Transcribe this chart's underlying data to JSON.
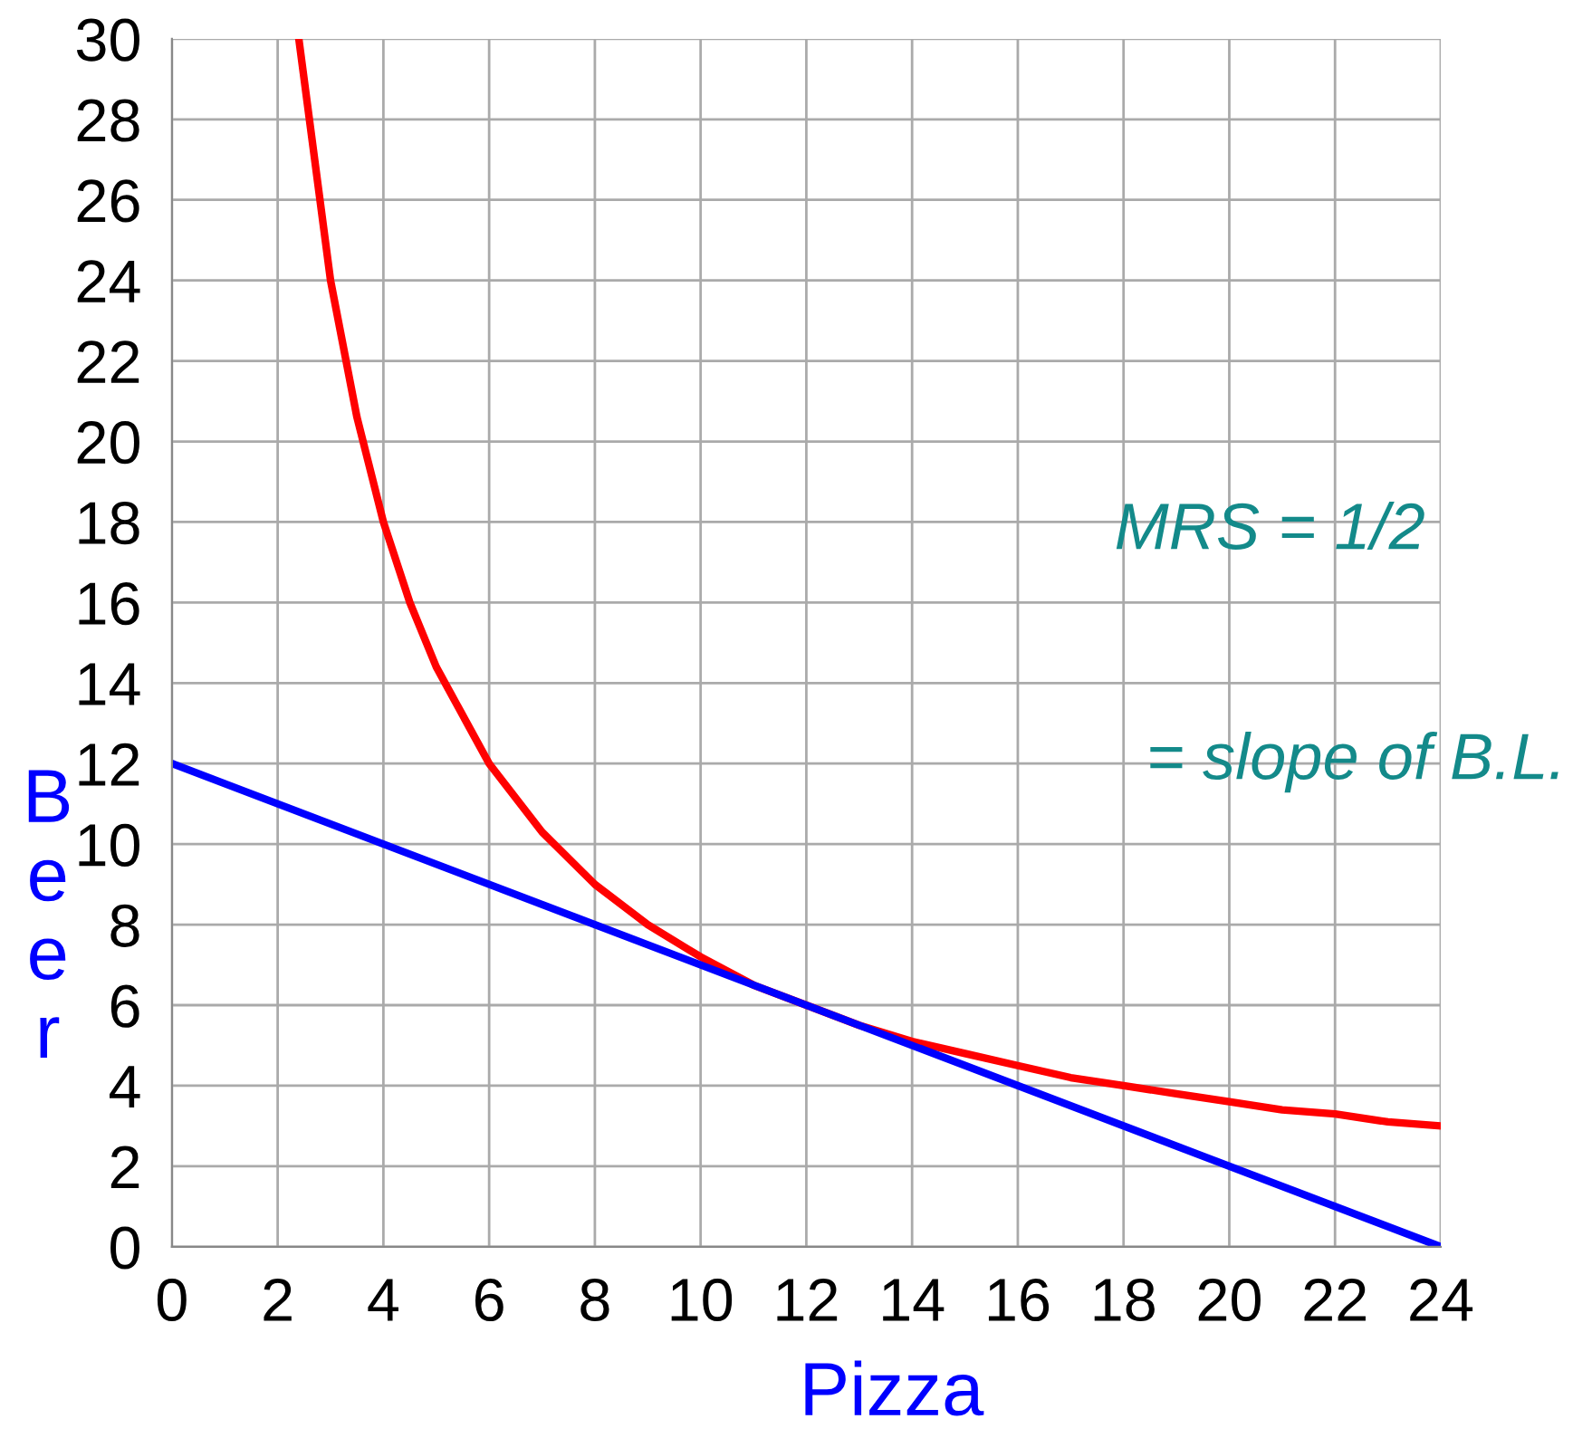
{
  "chart_data": {
    "type": "line",
    "xlabel": "Pizza",
    "ylabel": "Beer",
    "series": [
      {
        "color": "#ff0000",
        "x": [
          2.4,
          3,
          3.5,
          4,
          4.5,
          5,
          6,
          7,
          8,
          9,
          10,
          11,
          12,
          13,
          14,
          15,
          16,
          17,
          18,
          19,
          20,
          21,
          22,
          23,
          24
        ],
        "values": [
          30,
          24,
          20.6,
          18,
          16,
          14.4,
          12,
          10.3,
          9,
          8,
          7.2,
          6.5,
          6,
          5.5,
          5.1,
          4.8,
          4.5,
          4.2,
          4,
          3.8,
          3.6,
          3.4,
          3.3,
          3.1,
          3
        ]
      },
      {
        "color": "#0000ff",
        "x": [
          0,
          24
        ],
        "values": [
          12,
          0
        ]
      }
    ],
    "xlim": [
      0,
      24
    ],
    "ylim": [
      0,
      30
    ],
    "xticks": [
      0,
      2,
      4,
      6,
      8,
      10,
      12,
      14,
      16,
      18,
      20,
      22,
      24
    ],
    "yticks": [
      0,
      2,
      4,
      6,
      8,
      10,
      12,
      14,
      16,
      18,
      20,
      22,
      24,
      26,
      28,
      30
    ],
    "grid": true,
    "annotations": [
      "MRS = 1/2",
      "= slope of B.L."
    ]
  }
}
